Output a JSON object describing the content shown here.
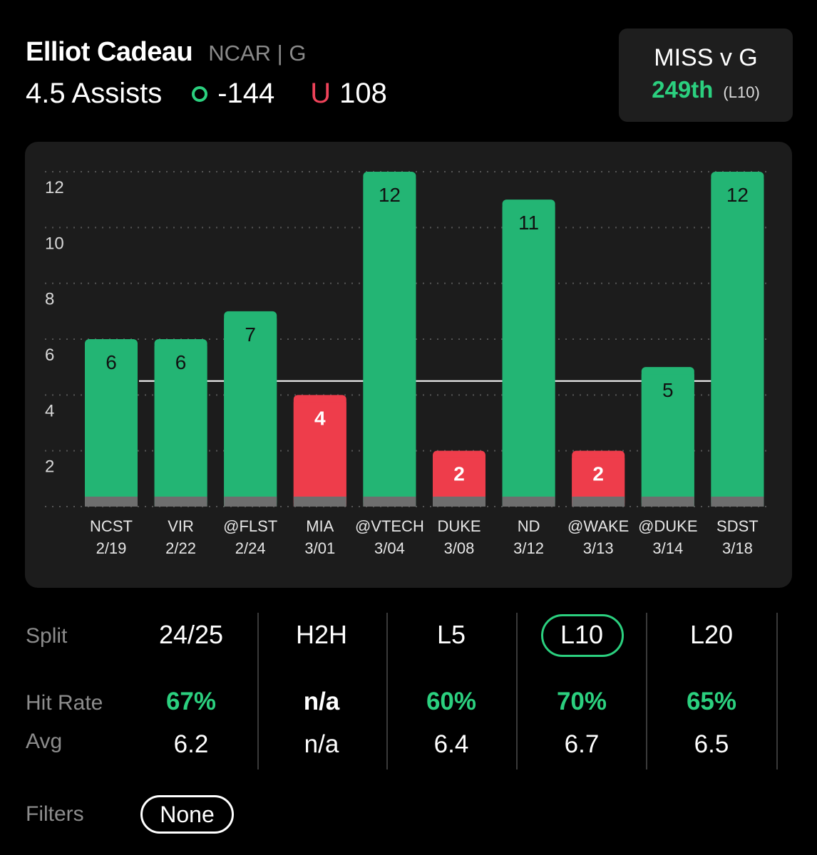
{
  "header": {
    "player_name": "Elliot Cadeau",
    "player_meta": "NCAR | G",
    "prop_line": "4.5 Assists",
    "over_odds": "-144",
    "under_letter": "U",
    "under_odds": "108"
  },
  "matchup": {
    "title": "MISS v G",
    "rank": "249th",
    "window": "(L10)"
  },
  "chart_data": {
    "type": "bar",
    "categories": [
      "NCST 2/19",
      "VIR 2/22",
      "@FLST 2/24",
      "MIA 3/01",
      "@VTECH 3/04",
      "DUKE 3/08",
      "ND 3/12",
      "@WAKE 3/13",
      "@DUKE 3/14",
      "SDST 3/18"
    ],
    "opponents": [
      "NCST",
      "VIR",
      "@FLST",
      "MIA",
      "@VTECH",
      "DUKE",
      "ND",
      "@WAKE",
      "@DUKE",
      "SDST"
    ],
    "dates": [
      "2/19",
      "2/22",
      "2/24",
      "3/01",
      "3/04",
      "3/08",
      "3/12",
      "3/13",
      "3/14",
      "3/18"
    ],
    "values": [
      6,
      6,
      7,
      4,
      12,
      2,
      11,
      2,
      5,
      12
    ],
    "line": 4.5,
    "yticks": [
      2,
      4,
      6,
      8,
      10,
      12
    ],
    "ylim": [
      0,
      12
    ],
    "grid": true,
    "colors": {
      "over": "#23b574",
      "under": "#ee3d4b",
      "base": "#6e6e6e",
      "line": "#ffffff"
    }
  },
  "stats": {
    "labels": {
      "split": "Split",
      "hit_rate": "Hit Rate",
      "avg": "Avg"
    },
    "columns": [
      {
        "split": "24/25",
        "hit_rate": "67%",
        "avg": "6.2"
      },
      {
        "split": "H2H",
        "hit_rate": "n/a",
        "avg": "n/a"
      },
      {
        "split": "L5",
        "hit_rate": "60%",
        "avg": "6.4"
      },
      {
        "split": "L10",
        "hit_rate": "70%",
        "avg": "6.7"
      },
      {
        "split": "L20",
        "hit_rate": "65%",
        "avg": "6.5"
      }
    ],
    "selected": "L10"
  },
  "filters": {
    "label": "Filters",
    "value": "None"
  }
}
